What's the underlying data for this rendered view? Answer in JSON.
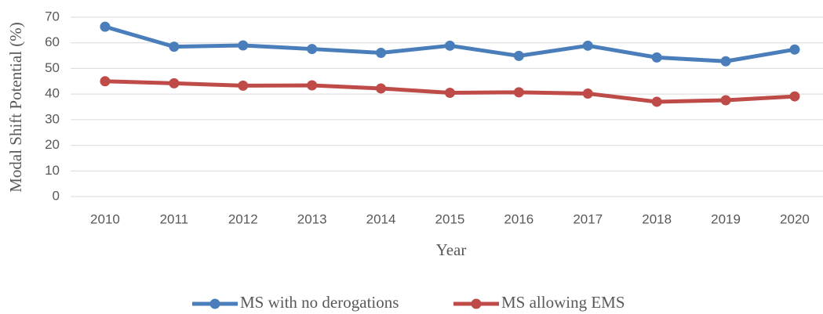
{
  "chart_data": {
    "type": "line",
    "xlabel": "Year",
    "ylabel": "Modal Shift Potential (%)",
    "categories": [
      "2010",
      "2011",
      "2012",
      "2013",
      "2014",
      "2015",
      "2016",
      "2017",
      "2018",
      "2019",
      "2020"
    ],
    "series": [
      {
        "name": "MS with no derogations",
        "color": "#4a7ebb",
        "values": [
          66.3,
          58.5,
          59,
          57.6,
          56.1,
          58.9,
          54.9,
          58.9,
          54.3,
          52.8,
          57.4
        ]
      },
      {
        "name": "MS allowing EMS",
        "color": "#be4b48",
        "values": [
          45,
          44.2,
          43.3,
          43.4,
          42.2,
          40.5,
          40.7,
          40.2,
          37,
          37.6,
          39.1
        ]
      }
    ],
    "ylim": [
      0,
      70
    ],
    "yticks": [
      0,
      10,
      20,
      30,
      40,
      50,
      60,
      70
    ],
    "grid": true,
    "legend": "bottom"
  }
}
